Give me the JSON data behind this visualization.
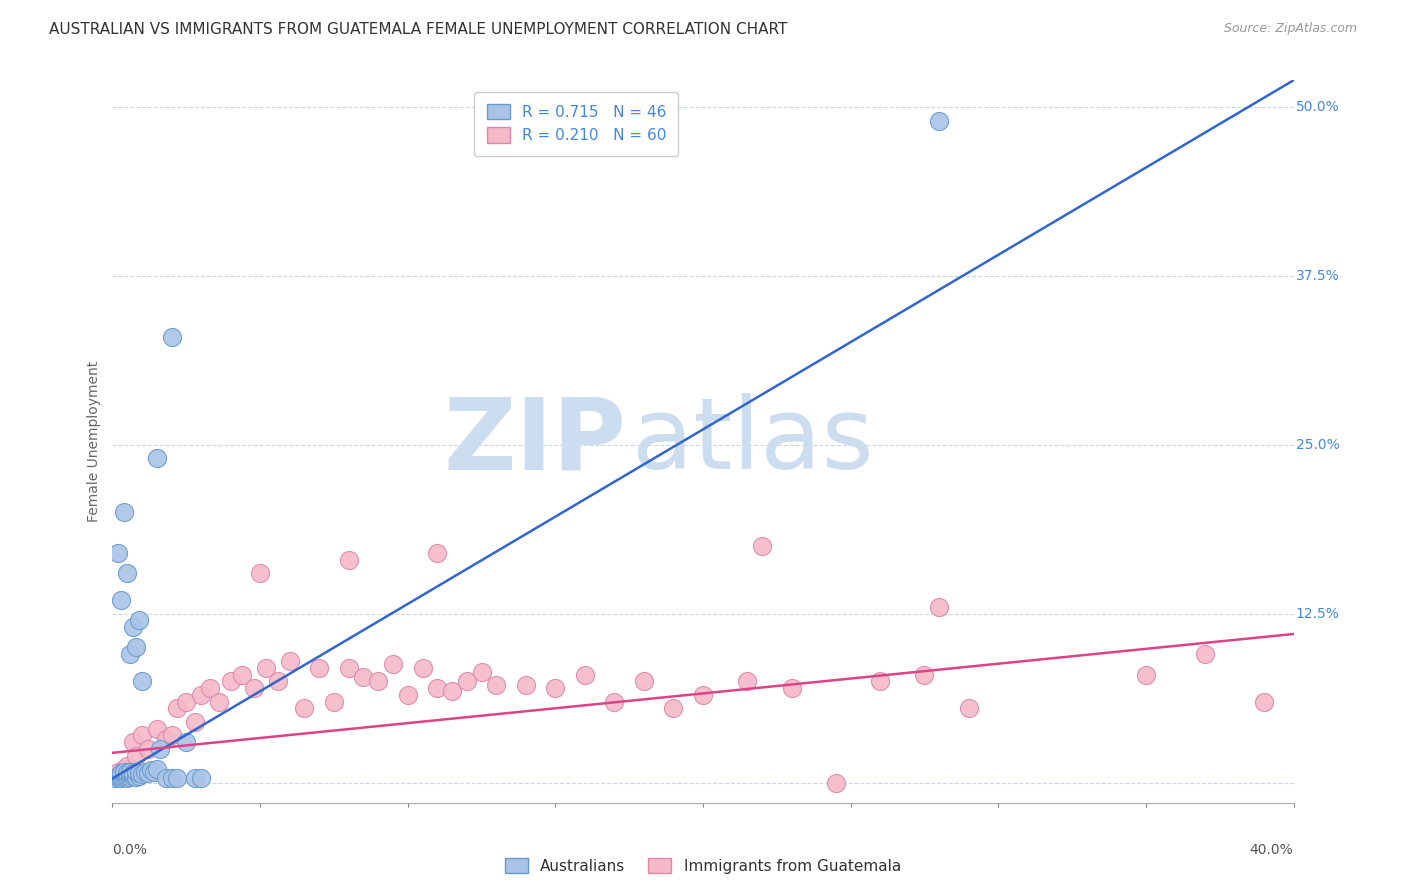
{
  "title": "AUSTRALIAN VS IMMIGRANTS FROM GUATEMALA FEMALE UNEMPLOYMENT CORRELATION CHART",
  "source": "Source: ZipAtlas.com",
  "ylabel": "Female Unemployment",
  "x_range": [
    0.0,
    0.4
  ],
  "y_range": [
    -0.015,
    0.52
  ],
  "blue_R": 0.715,
  "blue_N": 46,
  "pink_R": 0.21,
  "pink_N": 60,
  "watermark": "ZIPatlas",
  "watermark_color": "#cdddf0",
  "blue_color": "#aac4e8",
  "blue_edge": "#6699cc",
  "pink_color": "#f4b8c8",
  "pink_edge": "#dd88aa",
  "blue_line_color": "#3366cc",
  "pink_line_color": "#dd4488",
  "legend_text_color": "#4488dd",
  "background_color": "#ffffff",
  "grid_color": "#c8d8e8",
  "title_fontsize": 11,
  "axis_label_fontsize": 10,
  "tick_fontsize": 10,
  "legend_fontsize": 11,
  "blue_x": [
    0.001,
    0.002,
    0.002,
    0.003,
    0.003,
    0.003,
    0.004,
    0.004,
    0.004,
    0.005,
    0.005,
    0.005,
    0.006,
    0.006,
    0.006,
    0.007,
    0.007,
    0.008,
    0.008,
    0.009,
    0.009,
    0.01,
    0.011,
    0.012,
    0.013,
    0.014,
    0.015,
    0.016,
    0.018,
    0.02,
    0.022,
    0.025,
    0.028,
    0.03,
    0.002,
    0.003,
    0.004,
    0.005,
    0.006,
    0.007,
    0.008,
    0.009,
    0.01,
    0.015,
    0.02,
    0.28
  ],
  "blue_y": [
    0.003,
    0.004,
    0.005,
    0.003,
    0.005,
    0.007,
    0.004,
    0.006,
    0.008,
    0.003,
    0.005,
    0.007,
    0.004,
    0.006,
    0.008,
    0.005,
    0.007,
    0.004,
    0.008,
    0.005,
    0.007,
    0.006,
    0.008,
    0.007,
    0.009,
    0.008,
    0.01,
    0.025,
    0.003,
    0.003,
    0.003,
    0.03,
    0.003,
    0.003,
    0.17,
    0.135,
    0.2,
    0.155,
    0.095,
    0.115,
    0.1,
    0.12,
    0.075,
    0.24,
    0.33,
    0.49
  ],
  "pink_x": [
    0.001,
    0.002,
    0.003,
    0.004,
    0.005,
    0.006,
    0.007,
    0.008,
    0.01,
    0.012,
    0.015,
    0.018,
    0.02,
    0.022,
    0.025,
    0.028,
    0.03,
    0.033,
    0.036,
    0.04,
    0.044,
    0.048,
    0.052,
    0.056,
    0.06,
    0.065,
    0.07,
    0.075,
    0.08,
    0.085,
    0.09,
    0.095,
    0.1,
    0.105,
    0.11,
    0.115,
    0.12,
    0.125,
    0.13,
    0.14,
    0.15,
    0.16,
    0.17,
    0.18,
    0.19,
    0.2,
    0.215,
    0.23,
    0.245,
    0.26,
    0.275,
    0.29,
    0.05,
    0.08,
    0.11,
    0.22,
    0.35,
    0.37,
    0.39,
    0.28
  ],
  "pink_y": [
    0.005,
    0.008,
    0.006,
    0.01,
    0.012,
    0.008,
    0.03,
    0.02,
    0.035,
    0.025,
    0.04,
    0.032,
    0.035,
    0.055,
    0.06,
    0.045,
    0.065,
    0.07,
    0.06,
    0.075,
    0.08,
    0.07,
    0.085,
    0.075,
    0.09,
    0.055,
    0.085,
    0.06,
    0.085,
    0.078,
    0.075,
    0.088,
    0.065,
    0.085,
    0.07,
    0.068,
    0.075,
    0.082,
    0.072,
    0.072,
    0.07,
    0.08,
    0.06,
    0.075,
    0.055,
    0.065,
    0.075,
    0.07,
    0.0,
    0.075,
    0.08,
    0.055,
    0.155,
    0.165,
    0.17,
    0.175,
    0.08,
    0.095,
    0.06,
    0.13
  ],
  "blue_line_x0": 0.0,
  "blue_line_y0": 0.003,
  "blue_line_x1": 0.4,
  "blue_line_y1": 0.52,
  "pink_line_x0": 0.0,
  "pink_line_y0": 0.022,
  "pink_line_x1": 0.4,
  "pink_line_y1": 0.11
}
